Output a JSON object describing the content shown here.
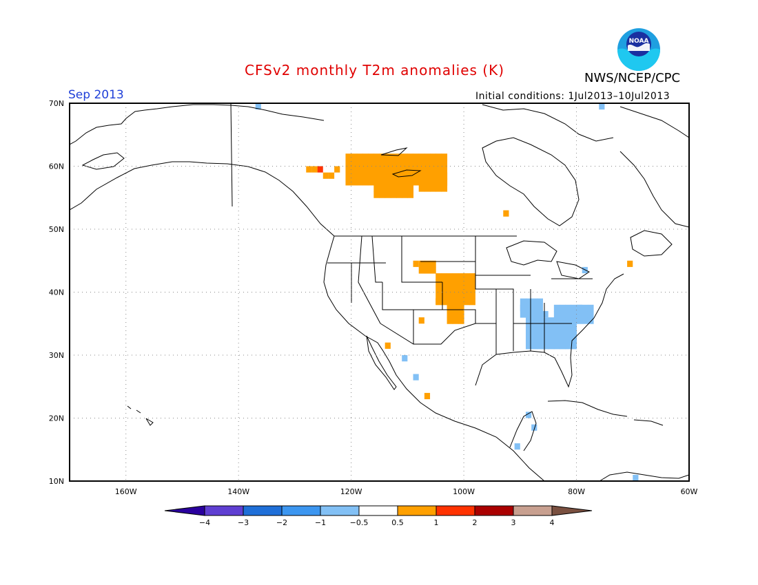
{
  "header": {
    "title": "CFSv2 monthly T2m anomalies (K)",
    "period": "Sep 2013",
    "initial_conditions": "Initial conditions: 1Jul2013–10Jul2013",
    "agency": "NWS/NCEP/CPC",
    "logo_text": "NOAA"
  },
  "map": {
    "lon_range": [
      -170,
      -60
    ],
    "lat_range": [
      10,
      70
    ],
    "lat_ticks": [
      {
        "value": 70,
        "label": "70N"
      },
      {
        "value": 60,
        "label": "60N"
      },
      {
        "value": 50,
        "label": "50N"
      },
      {
        "value": 40,
        "label": "40N"
      },
      {
        "value": 30,
        "label": "30N"
      },
      {
        "value": 20,
        "label": "20N"
      },
      {
        "value": 10,
        "label": "10N"
      }
    ],
    "lon_ticks": [
      {
        "value": -160,
        "label": "160W"
      },
      {
        "value": -140,
        "label": "140W"
      },
      {
        "value": -120,
        "label": "120W"
      },
      {
        "value": -100,
        "label": "100W"
      },
      {
        "value": -80,
        "label": "80W"
      },
      {
        "value": -60,
        "label": "60W"
      }
    ],
    "gridlines": "dotted",
    "anomaly_cells": [
      {
        "lon": -122.5,
        "lat": 59.5,
        "anomaly": 0.6
      },
      {
        "lon": -123.5,
        "lat": 58.5,
        "anomaly": 0.6
      },
      {
        "lon": -125.5,
        "lat": 59.5,
        "anomaly": 1.2
      },
      {
        "lon": -126.5,
        "lat": 59.5,
        "anomaly": 0.7
      },
      {
        "lon": -127.5,
        "lat": 59.5,
        "anomaly": 0.6
      },
      {
        "lon": -124.5,
        "lat": 58.5,
        "anomaly": 0.6
      },
      {
        "lon": -108.5,
        "lat": 44.5,
        "anomaly": 0.7
      },
      {
        "lon": -102.5,
        "lat": 40.5,
        "anomaly": 0.8
      },
      {
        "lon": -104.5,
        "lat": 38.5,
        "anomaly": 0.7
      },
      {
        "lon": -100.5,
        "lat": 36.5,
        "anomaly": 0.6
      },
      {
        "lon": -107.5,
        "lat": 35.5,
        "anomaly": 0.6
      },
      {
        "lon": -92.5,
        "lat": 52.5,
        "anomaly": 0.6
      },
      {
        "lon": -70.5,
        "lat": 44.5,
        "anomaly": 0.6
      },
      {
        "lon": -113.5,
        "lat": 31.5,
        "anomaly": 0.6
      },
      {
        "lon": -106.5,
        "lat": 23.5,
        "anomaly": 0.6
      },
      {
        "lon": -85.5,
        "lat": 36.5,
        "anomaly": -0.8
      },
      {
        "lon": -87.5,
        "lat": 33.5,
        "anomaly": -0.8
      },
      {
        "lon": -84.5,
        "lat": 33.5,
        "anomaly": -0.8
      },
      {
        "lon": -81.5,
        "lat": 35.5,
        "anomaly": -0.8
      },
      {
        "lon": -79.5,
        "lat": 36.5,
        "anomaly": -0.9
      },
      {
        "lon": -82.5,
        "lat": 31.5,
        "anomaly": -1.1
      },
      {
        "lon": -79.5,
        "lat": 37.5,
        "anomaly": -0.7
      },
      {
        "lon": -89.5,
        "lat": 37.5,
        "anomaly": -0.7
      },
      {
        "lon": -78.5,
        "lat": 43.5,
        "anomaly": -0.6
      },
      {
        "lon": -110.5,
        "lat": 29.5,
        "anomaly": -0.7
      },
      {
        "lon": -108.5,
        "lat": 26.5,
        "anomaly": -0.6
      },
      {
        "lon": -88.5,
        "lat": 20.5,
        "anomaly": -0.7
      },
      {
        "lon": -87.5,
        "lat": 18.5,
        "anomaly": -0.6
      },
      {
        "lon": -90.5,
        "lat": 15.5,
        "anomaly": -0.6
      },
      {
        "lon": -75.5,
        "lat": 69.5,
        "anomaly": -0.6
      },
      {
        "lon": -136.5,
        "lat": 69.5,
        "anomaly": -0.6
      },
      {
        "lon": -69.5,
        "lat": 10.5,
        "anomaly": -0.6
      }
    ]
  },
  "colorbar": {
    "boundaries": [
      "−4",
      "−3",
      "−2",
      "−1",
      "−0.5",
      "0.5",
      "1",
      "2",
      "3",
      "4"
    ],
    "colors": [
      "#2a009e",
      "#5f3fd2",
      "#1f6fd8",
      "#3c96f0",
      "#82c0f5",
      "#ffffff",
      "#ffa000",
      "#ff3200",
      "#aa0000",
      "#c8a090",
      "#7a5040"
    ]
  }
}
